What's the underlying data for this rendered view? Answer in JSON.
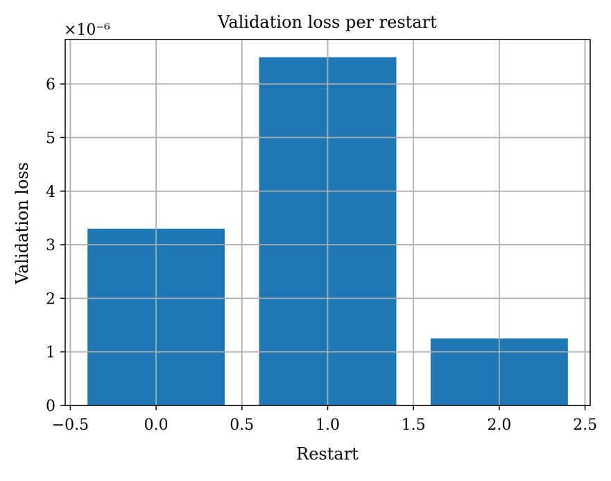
{
  "chart_data": {
    "type": "bar",
    "title": "Validation loss per restart",
    "xlabel": "Restart",
    "ylabel": "Validation loss",
    "scale_label": "×10⁻⁶",
    "x": [
      0,
      1,
      2
    ],
    "values": [
      3.3e-06,
      6.5e-06,
      1.25e-06
    ],
    "bar_width": 0.8,
    "xlim": [
      -0.53,
      2.53
    ],
    "ylim": [
      0,
      6.83e-06
    ],
    "x_ticks": [
      -0.5,
      0.0,
      0.5,
      1.0,
      1.5,
      2.0,
      2.5
    ],
    "x_tick_labels": [
      "−0.5",
      "0.0",
      "0.5",
      "1.0",
      "1.5",
      "2.0",
      "2.5"
    ],
    "y_ticks": [
      0,
      1e-06,
      2e-06,
      3e-06,
      4e-06,
      5e-06,
      6e-06
    ],
    "y_tick_labels": [
      "0",
      "1",
      "2",
      "3",
      "4",
      "5",
      "6"
    ],
    "grid": true,
    "colors": {
      "bar": "#1f77b4",
      "grid": "#b0b0b0",
      "axis": "#000000"
    }
  }
}
